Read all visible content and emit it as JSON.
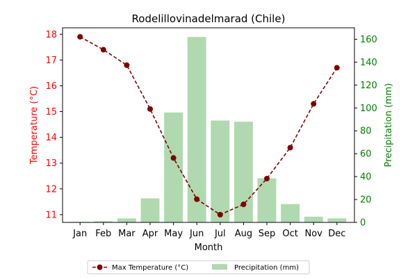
{
  "chart_data": {
    "type": "bar+line",
    "title": "Rodelillovinadelmarad (Chile)",
    "xlabel": "Month",
    "categories": [
      "Jan",
      "Feb",
      "Mar",
      "Apr",
      "May",
      "Jun",
      "Jul",
      "Aug",
      "Sep",
      "Oct",
      "Nov",
      "Dec"
    ],
    "y_left": {
      "label": "Temperature (°C)",
      "ylim": [
        10.7,
        18.25
      ],
      "ticks": [
        11,
        12,
        13,
        14,
        15,
        16,
        17,
        18
      ],
      "color": "#ff0000"
    },
    "y_right": {
      "label": "Precipitation (mm)",
      "ylim": [
        0,
        170
      ],
      "ticks": [
        0,
        20,
        40,
        60,
        80,
        100,
        120,
        140,
        160
      ],
      "color": "#008000"
    },
    "series": [
      {
        "name": "Max Temperature (°C)",
        "axis": "left",
        "kind": "line",
        "style": "dashed",
        "marker": "circle",
        "color": "#800000",
        "values": [
          17.9,
          17.4,
          16.8,
          15.1,
          13.2,
          11.6,
          11.0,
          11.4,
          12.4,
          13.6,
          15.3,
          16.7
        ]
      },
      {
        "name": "Precipitation (mm)",
        "axis": "right",
        "kind": "bar",
        "color": "#b0d9b0",
        "values": [
          0.5,
          1,
          3.5,
          21,
          96,
          162,
          89,
          88,
          38.5,
          16,
          5,
          3.5
        ]
      }
    ],
    "legend": {
      "placement": "bottom-center",
      "columns": 2
    },
    "grid": false
  }
}
